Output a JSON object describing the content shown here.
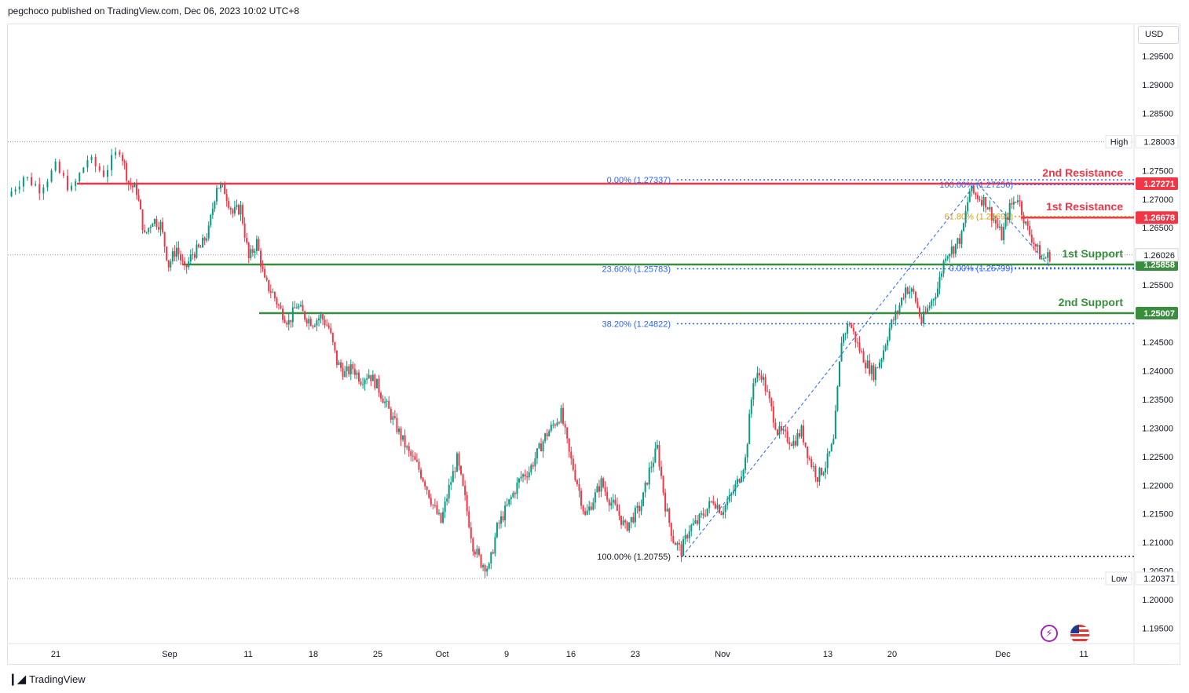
{
  "header": {
    "text": "pegchoco published on TradingView.com, Dec 06, 2023 10:02 UTC+8"
  },
  "footer": {
    "brand": "TradingView"
  },
  "price_axis": {
    "currency": "USD"
  },
  "icons": {
    "lightning": "lightning-icon",
    "flag": "us-flag-icon"
  },
  "colors": {
    "up": "#089981",
    "down": "#f23645",
    "resistance": "#f23645",
    "support": "#388e3c",
    "fib": "#2962ff",
    "fib_golden": "#d4a017",
    "axis_text": "#131722"
  },
  "chart_data": {
    "type": "candlestick",
    "symbol_currency": "USD",
    "x_ticks": [
      "21",
      "Sep",
      "11",
      "18",
      "25",
      "Oct",
      "9",
      "16",
      "23",
      "Nov",
      "13",
      "20",
      "Dec",
      "11"
    ],
    "y_ticks": [
      1.295,
      1.29,
      1.285,
      1.275,
      1.27,
      1.265,
      1.255,
      1.245,
      1.24,
      1.235,
      1.23,
      1.225,
      1.22,
      1.215,
      1.21,
      1.205,
      1.2,
      1.195
    ],
    "y_tick_labels": [
      "1.29500",
      "1.29000",
      "1.28500",
      "1.27500",
      "1.27000",
      "1.26500",
      "1.25500",
      "1.24500",
      "1.24000",
      "1.23500",
      "1.23000",
      "1.22500",
      "1.22000",
      "1.21500",
      "1.21000",
      "1.20500",
      "1.20000",
      "1.19500"
    ],
    "ylim": [
      1.1925,
      1.2985
    ],
    "high": {
      "label": "High",
      "value": "1.28003"
    },
    "low": {
      "label": "Low",
      "value": "1.20371"
    },
    "last_price": "1.26026",
    "levels": [
      {
        "name": "2nd Resistance",
        "value": 1.27271,
        "label": "1.27271",
        "kind": "resistance"
      },
      {
        "name": "1st Resistance",
        "value": 1.26678,
        "label": "1.26678",
        "kind": "resistance"
      },
      {
        "name": "1st Support",
        "value": 1.25858,
        "label": "1.25858",
        "kind": "support"
      },
      {
        "name": "2nd Support",
        "value": 1.25007,
        "label": "1.25007",
        "kind": "support"
      }
    ],
    "fib_retracement": [
      {
        "label": "0.00% (1.27337)",
        "value": 1.27337
      },
      {
        "label": "23.60% (1.25783)",
        "value": 1.25783
      },
      {
        "label": "38.20% (1.24822)",
        "value": 1.24822
      },
      {
        "label": "100.00% (1.20755)",
        "value": 1.20755
      }
    ],
    "fib_recent": [
      {
        "label": "100.00% (1.27256)",
        "value": 1.27256
      },
      {
        "label": "61.80% (1.26699)",
        "value": 1.26699
      },
      {
        "label": "0.00% (1.25799)",
        "value": 1.25799
      }
    ],
    "path": [
      {
        "d": 0,
        "p": 1.2705
      },
      {
        "d": 2,
        "p": 1.274
      },
      {
        "d": 4,
        "p": 1.272
      },
      {
        "d": 6,
        "p": 1.2755
      },
      {
        "d": 8,
        "p": 1.2715
      },
      {
        "d": 10,
        "p": 1.277
      },
      {
        "d": 12,
        "p": 1.2745
      },
      {
        "d": 14,
        "p": 1.2788
      },
      {
        "d": 15,
        "p": 1.2728
      },
      {
        "d": 16,
        "p": 1.2715
      },
      {
        "d": 17,
        "p": 1.2635
      },
      {
        "d": 18,
        "p": 1.2665
      },
      {
        "d": 19,
        "p": 1.2655
      },
      {
        "d": 20,
        "p": 1.2585
      },
      {
        "d": 21,
        "p": 1.2615
      },
      {
        "d": 22,
        "p": 1.2575
      },
      {
        "d": 23,
        "p": 1.2605
      },
      {
        "d": 24,
        "p": 1.2615
      },
      {
        "d": 25,
        "p": 1.2645
      },
      {
        "d": 26,
        "p": 1.2725
      },
      {
        "d": 27,
        "p": 1.2715
      },
      {
        "d": 28,
        "p": 1.2675
      },
      {
        "d": 29,
        "p": 1.2685
      },
      {
        "d": 30,
        "p": 1.2595
      },
      {
        "d": 31,
        "p": 1.2625
      },
      {
        "d": 32,
        "p": 1.2555
      },
      {
        "d": 33,
        "p": 1.2535
      },
      {
        "d": 34,
        "p": 1.2505
      },
      {
        "d": 35,
        "p": 1.2485
      },
      {
        "d": 36,
        "p": 1.2515
      },
      {
        "d": 37,
        "p": 1.2495
      },
      {
        "d": 38,
        "p": 1.2485
      },
      {
        "d": 39,
        "p": 1.2495
      },
      {
        "d": 40,
        "p": 1.2475
      },
      {
        "d": 41,
        "p": 1.2415
      },
      {
        "d": 42,
        "p": 1.2395
      },
      {
        "d": 43,
        "p": 1.2405
      },
      {
        "d": 44,
        "p": 1.2385
      },
      {
        "d": 45,
        "p": 1.2395
      },
      {
        "d": 46,
        "p": 1.2375
      },
      {
        "d": 47,
        "p": 1.2345
      },
      {
        "d": 48,
        "p": 1.2315
      },
      {
        "d": 49,
        "p": 1.2285
      },
      {
        "d": 50,
        "p": 1.2255
      },
      {
        "d": 51,
        "p": 1.2235
      },
      {
        "d": 52,
        "p": 1.2205
      },
      {
        "d": 53,
        "p": 1.2165
      },
      {
        "d": 54,
        "p": 1.2135
      },
      {
        "d": 55,
        "p": 1.2195
      },
      {
        "d": 56,
        "p": 1.2245
      },
      {
        "d": 57,
        "p": 1.2175
      },
      {
        "d": 58,
        "p": 1.2095
      },
      {
        "d": 59,
        "p": 1.2065
      },
      {
        "d": 60,
        "p": 1.2055
      },
      {
        "d": 61,
        "p": 1.2125
      },
      {
        "d": 62,
        "p": 1.2155
      },
      {
        "d": 63,
        "p": 1.2185
      },
      {
        "d": 64,
        "p": 1.2215
      },
      {
        "d": 65,
        "p": 1.2225
      },
      {
        "d": 66,
        "p": 1.2255
      },
      {
        "d": 67,
        "p": 1.2285
      },
      {
        "d": 68,
        "p": 1.2305
      },
      {
        "d": 69,
        "p": 1.2325
      },
      {
        "d": 70,
        "p": 1.2255
      },
      {
        "d": 71,
        "p": 1.2205
      },
      {
        "d": 72,
        "p": 1.2145
      },
      {
        "d": 73,
        "p": 1.2175
      },
      {
        "d": 74,
        "p": 1.2205
      },
      {
        "d": 75,
        "p": 1.2175
      },
      {
        "d": 76,
        "p": 1.2155
      },
      {
        "d": 77,
        "p": 1.2125
      },
      {
        "d": 78,
        "p": 1.2145
      },
      {
        "d": 79,
        "p": 1.2165
      },
      {
        "d": 80,
        "p": 1.2225
      },
      {
        "d": 81,
        "p": 1.2265
      },
      {
        "d": 82,
        "p": 1.2165
      },
      {
        "d": 83,
        "p": 1.2105
      },
      {
        "d": 84,
        "p": 1.2085
      },
      {
        "d": 85,
        "p": 1.2125
      },
      {
        "d": 86,
        "p": 1.2135
      },
      {
        "d": 87,
        "p": 1.2155
      },
      {
        "d": 88,
        "p": 1.2175
      },
      {
        "d": 89,
        "p": 1.2155
      },
      {
        "d": 90,
        "p": 1.2175
      },
      {
        "d": 91,
        "p": 1.2205
      },
      {
        "d": 92,
        "p": 1.2245
      },
      {
        "d": 93,
        "p": 1.2385
      },
      {
        "d": 94,
        "p": 1.2395
      },
      {
        "d": 95,
        "p": 1.2345
      },
      {
        "d": 96,
        "p": 1.2295
      },
      {
        "d": 97,
        "p": 1.2285
      },
      {
        "d": 98,
        "p": 1.2275
      },
      {
        "d": 99,
        "p": 1.2295
      },
      {
        "d": 100,
        "p": 1.2245
      },
      {
        "d": 101,
        "p": 1.2215
      },
      {
        "d": 102,
        "p": 1.2235
      },
      {
        "d": 103,
        "p": 1.2275
      },
      {
        "d": 104,
        "p": 1.2455
      },
      {
        "d": 105,
        "p": 1.2485
      },
      {
        "d": 106,
        "p": 1.2445
      },
      {
        "d": 107,
        "p": 1.2415
      },
      {
        "d": 108,
        "p": 1.2395
      },
      {
        "d": 109,
        "p": 1.2425
      },
      {
        "d": 110,
        "p": 1.2475
      },
      {
        "d": 111,
        "p": 1.2505
      },
      {
        "d": 112,
        "p": 1.2545
      },
      {
        "d": 113,
        "p": 1.2535
      },
      {
        "d": 114,
        "p": 1.2485
      },
      {
        "d": 115,
        "p": 1.2515
      },
      {
        "d": 116,
        "p": 1.2545
      },
      {
        "d": 117,
        "p": 1.2605
      },
      {
        "d": 118,
        "p": 1.2615
      },
      {
        "d": 119,
        "p": 1.2635
      },
      {
        "d": 120,
        "p": 1.2715
      },
      {
        "d": 121,
        "p": 1.2705
      },
      {
        "d": 122,
        "p": 1.2695
      },
      {
        "d": 123,
        "p": 1.2665
      },
      {
        "d": 124,
        "p": 1.2635
      },
      {
        "d": 125,
        "p": 1.2685
      },
      {
        "d": 126,
        "p": 1.2705
      },
      {
        "d": 127,
        "p": 1.2655
      },
      {
        "d": 128,
        "p": 1.2625
      },
      {
        "d": 129,
        "p": 1.2595
      },
      {
        "d": 130,
        "p": 1.2602
      }
    ]
  }
}
